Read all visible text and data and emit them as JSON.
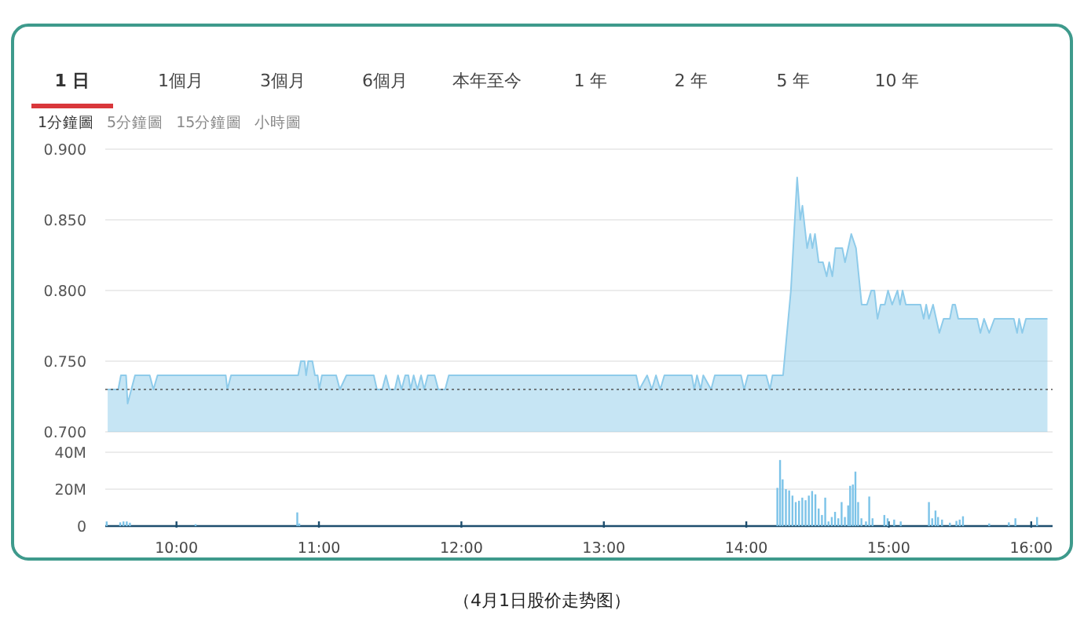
{
  "chart_data": [
    {
      "type": "other",
      "categories": [
        "1 日",
        "1個月",
        "3個月",
        "6個月",
        "本年至今",
        "1 年",
        "2 年",
        "5 年",
        "10 年"
      ],
      "y_categories": [
        "1分鐘圖",
        "5分鐘圖",
        "15分鐘圖",
        "小時圖"
      ],
      "annotations": [
        "（4月1日股价走势图）"
      ]
    },
    {
      "type": "area",
      "color": "#8ecbea",
      "tick_labels": "y",
      "grid": "y",
      "xlim": [
        9.5,
        16.15
      ],
      "ylim": [
        0.7,
        0.9
      ],
      "yticks": [
        {
          "value": 0.7,
          "label": "0.700"
        },
        {
          "value": 0.75,
          "label": "0.750"
        },
        {
          "value": 0.8,
          "label": "0.800"
        },
        {
          "value": 0.85,
          "label": "0.850"
        },
        {
          "value": 0.9,
          "label": "0.900"
        }
      ],
      "ref_lines": [
        {
          "axis": "y",
          "value": 0.73,
          "line_style": "dotted",
          "color": "#555555"
        }
      ],
      "x": [
        9.517,
        9.591,
        9.61,
        9.646,
        9.657,
        9.709,
        9.812,
        9.838,
        9.867,
        10.346,
        10.357,
        10.383,
        10.854,
        10.873,
        10.899,
        10.91,
        10.925,
        10.954,
        10.972,
        10.991,
        11.002,
        11.021,
        11.121,
        11.147,
        11.193,
        11.385,
        11.407,
        11.444,
        11.47,
        11.496,
        11.533,
        11.555,
        11.58,
        11.606,
        11.628,
        11.643,
        11.665,
        11.691,
        11.717,
        11.739,
        11.764,
        11.812,
        11.838,
        11.886,
        11.912,
        13.227,
        13.249,
        13.304,
        13.337,
        13.366,
        13.396,
        13.425,
        13.617,
        13.635,
        13.654,
        13.68,
        13.698,
        13.753,
        13.779,
        13.963,
        13.985,
        14.011,
        14.14,
        14.166,
        14.184,
        14.258,
        14.313,
        14.357,
        14.379,
        14.394,
        14.427,
        14.449,
        14.464,
        14.482,
        14.508,
        14.538,
        14.564,
        14.582,
        14.604,
        14.626,
        14.674,
        14.693,
        14.737,
        14.77,
        14.81,
        14.847,
        14.877,
        14.899,
        14.921,
        14.943,
        14.972,
        14.995,
        15.024,
        15.061,
        15.079,
        15.097,
        15.12,
        15.223,
        15.245,
        15.263,
        15.282,
        15.311,
        15.355,
        15.385,
        15.429,
        15.448,
        15.466,
        15.488,
        15.621,
        15.643,
        15.669,
        15.705,
        15.742,
        15.878,
        15.901,
        15.915,
        15.937,
        15.963,
        16.114
      ],
      "values": [
        0.73,
        0.73,
        0.74,
        0.74,
        0.72,
        0.74,
        0.74,
        0.73,
        0.74,
        0.74,
        0.73,
        0.74,
        0.74,
        0.75,
        0.75,
        0.74,
        0.75,
        0.75,
        0.74,
        0.74,
        0.73,
        0.74,
        0.74,
        0.73,
        0.74,
        0.74,
        0.73,
        0.73,
        0.74,
        0.73,
        0.73,
        0.74,
        0.73,
        0.74,
        0.74,
        0.73,
        0.74,
        0.73,
        0.74,
        0.73,
        0.74,
        0.74,
        0.73,
        0.73,
        0.74,
        0.74,
        0.73,
        0.74,
        0.73,
        0.74,
        0.73,
        0.74,
        0.74,
        0.73,
        0.74,
        0.73,
        0.74,
        0.73,
        0.74,
        0.74,
        0.73,
        0.74,
        0.74,
        0.73,
        0.74,
        0.74,
        0.8,
        0.88,
        0.85,
        0.86,
        0.83,
        0.84,
        0.83,
        0.84,
        0.82,
        0.82,
        0.81,
        0.82,
        0.81,
        0.83,
        0.83,
        0.82,
        0.84,
        0.83,
        0.79,
        0.79,
        0.8,
        0.8,
        0.78,
        0.79,
        0.79,
        0.8,
        0.79,
        0.8,
        0.79,
        0.8,
        0.79,
        0.79,
        0.78,
        0.79,
        0.78,
        0.79,
        0.77,
        0.78,
        0.78,
        0.79,
        0.79,
        0.78,
        0.78,
        0.77,
        0.78,
        0.77,
        0.78,
        0.78,
        0.77,
        0.78,
        0.77,
        0.78,
        0.78
      ]
    },
    {
      "type": "bar",
      "color": "#7cc3e8",
      "grid": "y",
      "xlim": [
        9.5,
        16.15
      ],
      "ylim": [
        0,
        40
      ],
      "yticks": [
        0,
        {
          "value": 20,
          "label": "20M"
        },
        {
          "value": 40,
          "label": "40M"
        }
      ],
      "xticks": [
        {
          "value": 10,
          "label": "10:00"
        },
        {
          "value": 11,
          "label": "11:00"
        },
        {
          "value": 12,
          "label": "12:00"
        },
        {
          "value": 13,
          "label": "13:00"
        },
        {
          "value": 14,
          "label": "14:00"
        },
        {
          "value": 15,
          "label": "15:00"
        },
        {
          "value": 16,
          "label": "16:00"
        }
      ],
      "x": [
        9.51,
        9.605,
        9.628,
        9.651,
        9.673,
        10.134,
        10.848,
        10.862,
        14.218,
        14.237,
        14.255,
        14.278,
        14.301,
        14.324,
        14.347,
        14.37,
        14.393,
        14.416,
        14.439,
        14.462,
        14.485,
        14.508,
        14.531,
        14.554,
        14.577,
        14.6,
        14.623,
        14.646,
        14.669,
        14.692,
        14.715,
        14.729,
        14.748,
        14.766,
        14.785,
        14.808,
        14.84,
        14.863,
        14.886,
        14.969,
        14.992,
        15.038,
        15.084,
        15.282,
        15.305,
        15.328,
        15.346,
        15.374,
        15.429,
        15.475,
        15.498,
        15.521,
        15.705,
        15.843,
        15.889,
        16.041
      ],
      "values": [
        2.5,
        2,
        2.5,
        2.5,
        1.8,
        1,
        7.4,
        1.4,
        20.7,
        35.8,
        25.3,
        20,
        19.3,
        16.5,
        13,
        13.7,
        15.4,
        14,
        16.5,
        19,
        17.2,
        9.5,
        6,
        15.4,
        2.5,
        4.9,
        7.7,
        4.2,
        13,
        4.9,
        11.2,
        21.8,
        22.5,
        29.5,
        13,
        4.2,
        2.5,
        16,
        4.2,
        6,
        4.2,
        3.5,
        2.5,
        13,
        4.2,
        8.4,
        4.9,
        3.5,
        1.8,
        2.8,
        3.5,
        5.3,
        1.4,
        2,
        4.2,
        4.9
      ]
    }
  ]
}
